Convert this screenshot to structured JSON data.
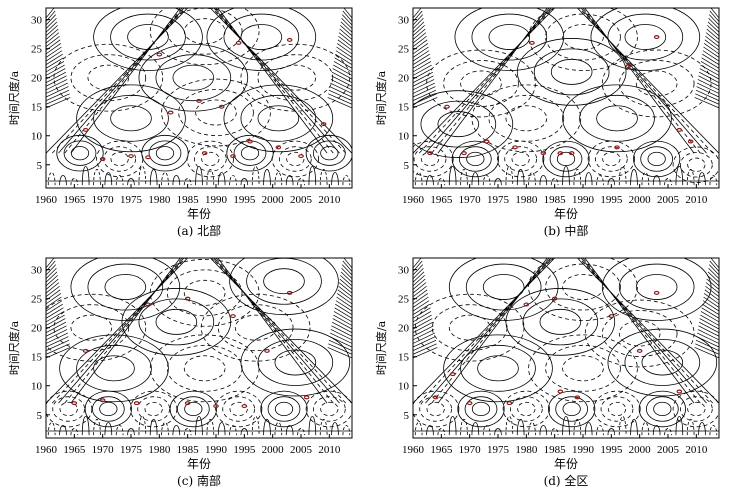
{
  "chart_data": [
    {
      "type": "contour",
      "panel": "a",
      "caption": "(a) 北部",
      "xlabel": "年份",
      "ylabel": "时间尺度/a",
      "xlim": [
        1960,
        2014
      ],
      "ylim": [
        1,
        32
      ],
      "xticks": [
        1960,
        1965,
        1970,
        1975,
        1980,
        1985,
        1990,
        1995,
        2000,
        2005,
        2010
      ],
      "yticks": [
        5,
        10,
        15,
        20,
        25,
        30
      ],
      "centers": [
        {
          "x": 1978,
          "y": 27,
          "s": 1
        },
        {
          "x": 1988,
          "y": 28,
          "s": -1
        },
        {
          "x": 1998,
          "y": 27,
          "s": 1
        },
        {
          "x": 1971,
          "y": 20,
          "s": -1
        },
        {
          "x": 1986,
          "y": 20,
          "s": 1
        },
        {
          "x": 2004,
          "y": 20,
          "s": -1
        },
        {
          "x": 1975,
          "y": 13,
          "s": 1
        },
        {
          "x": 1990,
          "y": 14,
          "s": -1
        },
        {
          "x": 2001,
          "y": 13,
          "s": 1
        },
        {
          "x": 1966,
          "y": 7,
          "s": 1
        },
        {
          "x": 1973,
          "y": 6,
          "s": -1
        },
        {
          "x": 1981,
          "y": 7,
          "s": 1
        },
        {
          "x": 1989,
          "y": 6,
          "s": -1
        },
        {
          "x": 1996,
          "y": 7,
          "s": 1
        },
        {
          "x": 2004,
          "y": 6,
          "s": -1
        },
        {
          "x": 2010,
          "y": 7,
          "s": 1
        }
      ],
      "marks": [
        {
          "x": 1967,
          "y": 11
        },
        {
          "x": 1970,
          "y": 6
        },
        {
          "x": 1975,
          "y": 6.5
        },
        {
          "x": 1978,
          "y": 6.3
        },
        {
          "x": 1980,
          "y": 24
        },
        {
          "x": 1982,
          "y": 14
        },
        {
          "x": 1987,
          "y": 16
        },
        {
          "x": 1988,
          "y": 7
        },
        {
          "x": 1991,
          "y": 15
        },
        {
          "x": 1993,
          "y": 6.5
        },
        {
          "x": 1994,
          "y": 26
        },
        {
          "x": 1996,
          "y": 9
        },
        {
          "x": 2001,
          "y": 8
        },
        {
          "x": 2003,
          "y": 26.5
        },
        {
          "x": 2005,
          "y": 6.5
        },
        {
          "x": 2009,
          "y": 12
        }
      ]
    },
    {
      "type": "contour",
      "panel": "b",
      "caption": "(b) 中部",
      "xlabel": "年份",
      "ylabel": "时间尺度/a",
      "xlim": [
        1960,
        2014
      ],
      "ylim": [
        1,
        32
      ],
      "xticks": [
        1960,
        1965,
        1970,
        1975,
        1980,
        1985,
        1990,
        1995,
        2000,
        2005,
        2010
      ],
      "yticks": [
        5,
        10,
        15,
        20,
        25,
        30
      ],
      "centers": [
        {
          "x": 1977,
          "y": 27,
          "s": 1
        },
        {
          "x": 1990,
          "y": 27,
          "s": -1
        },
        {
          "x": 2001,
          "y": 27,
          "s": 1
        },
        {
          "x": 1972,
          "y": 19,
          "s": -1
        },
        {
          "x": 1988,
          "y": 21,
          "s": 1
        },
        {
          "x": 2003,
          "y": 19,
          "s": -1
        },
        {
          "x": 1968,
          "y": 12,
          "s": 1
        },
        {
          "x": 1980,
          "y": 13,
          "s": -1
        },
        {
          "x": 1996,
          "y": 13,
          "s": 1
        },
        {
          "x": 1963,
          "y": 6,
          "s": -1
        },
        {
          "x": 1971,
          "y": 6,
          "s": 1
        },
        {
          "x": 1979,
          "y": 6,
          "s": -1
        },
        {
          "x": 1987,
          "y": 6,
          "s": 1
        },
        {
          "x": 1995,
          "y": 6,
          "s": -1
        },
        {
          "x": 2003,
          "y": 6,
          "s": 1
        },
        {
          "x": 2010,
          "y": 5,
          "s": -1
        }
      ],
      "marks": [
        {
          "x": 1963,
          "y": 7
        },
        {
          "x": 1966,
          "y": 15
        },
        {
          "x": 1969,
          "y": 7
        },
        {
          "x": 1973,
          "y": 9
        },
        {
          "x": 1978,
          "y": 8
        },
        {
          "x": 1981,
          "y": 26
        },
        {
          "x": 1983,
          "y": 7
        },
        {
          "x": 1986,
          "y": 7
        },
        {
          "x": 1988,
          "y": 7
        },
        {
          "x": 1996,
          "y": 8
        },
        {
          "x": 1998,
          "y": 22
        },
        {
          "x": 2003,
          "y": 27
        },
        {
          "x": 2007,
          "y": 11
        },
        {
          "x": 2009,
          "y": 9
        }
      ]
    },
    {
      "type": "contour",
      "panel": "c",
      "caption": "(c) 南部",
      "xlabel": "年份",
      "ylabel": "时间尺度/a",
      "xlim": [
        1960,
        2014
      ],
      "ylim": [
        1,
        32
      ],
      "xticks": [
        1960,
        1965,
        1970,
        1975,
        1980,
        1985,
        1990,
        1995,
        2000,
        2005,
        2010
      ],
      "yticks": [
        5,
        10,
        15,
        20,
        25,
        30
      ],
      "centers": [
        {
          "x": 1974,
          "y": 27,
          "s": 1
        },
        {
          "x": 1988,
          "y": 26,
          "s": -1
        },
        {
          "x": 2002,
          "y": 28,
          "s": 1
        },
        {
          "x": 1968,
          "y": 20,
          "s": -1
        },
        {
          "x": 1983,
          "y": 21,
          "s": 1
        },
        {
          "x": 1997,
          "y": 20,
          "s": -1
        },
        {
          "x": 1972,
          "y": 13,
          "s": 1
        },
        {
          "x": 1988,
          "y": 13,
          "s": -1
        },
        {
          "x": 2004,
          "y": 14,
          "s": 1
        },
        {
          "x": 1964,
          "y": 6,
          "s": -1
        },
        {
          "x": 1971,
          "y": 6,
          "s": 1
        },
        {
          "x": 1979,
          "y": 6,
          "s": -1
        },
        {
          "x": 1986,
          "y": 6,
          "s": 1
        },
        {
          "x": 1994,
          "y": 6,
          "s": -1
        },
        {
          "x": 2002,
          "y": 6,
          "s": 1
        },
        {
          "x": 2010,
          "y": 6,
          "s": -1
        }
      ],
      "marks": [
        {
          "x": 1965,
          "y": 7
        },
        {
          "x": 1967,
          "y": 16
        },
        {
          "x": 1970,
          "y": 7.5
        },
        {
          "x": 1976,
          "y": 7
        },
        {
          "x": 1978,
          "y": 24
        },
        {
          "x": 1985,
          "y": 25
        },
        {
          "x": 1985,
          "y": 7
        },
        {
          "x": 1990,
          "y": 6.5
        },
        {
          "x": 1993,
          "y": 22
        },
        {
          "x": 1995,
          "y": 6.5
        },
        {
          "x": 1999,
          "y": 16
        },
        {
          "x": 2003,
          "y": 26
        },
        {
          "x": 2006,
          "y": 8
        }
      ]
    },
    {
      "type": "contour",
      "panel": "d",
      "caption": "(d) 全区",
      "xlabel": "年份",
      "ylabel": "时间尺度/a",
      "xlim": [
        1960,
        2014
      ],
      "ylim": [
        1,
        32
      ],
      "xticks": [
        1960,
        1965,
        1970,
        1975,
        1980,
        1985,
        1990,
        1995,
        2000,
        2005,
        2010
      ],
      "yticks": [
        5,
        10,
        15,
        20,
        25,
        30
      ],
      "centers": [
        {
          "x": 1976,
          "y": 27,
          "s": 1
        },
        {
          "x": 1990,
          "y": 27,
          "s": -1
        },
        {
          "x": 2003,
          "y": 27,
          "s": 1
        },
        {
          "x": 1970,
          "y": 20,
          "s": -1
        },
        {
          "x": 1986,
          "y": 21,
          "s": 1
        },
        {
          "x": 2000,
          "y": 19,
          "s": -1
        },
        {
          "x": 1975,
          "y": 13,
          "s": 1
        },
        {
          "x": 1990,
          "y": 13,
          "s": -1
        },
        {
          "x": 2004,
          "y": 14,
          "s": 1
        },
        {
          "x": 1964,
          "y": 6,
          "s": -1
        },
        {
          "x": 1972,
          "y": 6,
          "s": 1
        },
        {
          "x": 1980,
          "y": 6,
          "s": -1
        },
        {
          "x": 1988,
          "y": 6,
          "s": 1
        },
        {
          "x": 1996,
          "y": 6,
          "s": -1
        },
        {
          "x": 2004,
          "y": 6,
          "s": 1
        },
        {
          "x": 2010,
          "y": 6,
          "s": -1
        }
      ],
      "marks": [
        {
          "x": 1964,
          "y": 8
        },
        {
          "x": 1967,
          "y": 12
        },
        {
          "x": 1970,
          "y": 7
        },
        {
          "x": 1977,
          "y": 7
        },
        {
          "x": 1980,
          "y": 24
        },
        {
          "x": 1985,
          "y": 25
        },
        {
          "x": 1986,
          "y": 9
        },
        {
          "x": 1989,
          "y": 8
        },
        {
          "x": 1995,
          "y": 22
        },
        {
          "x": 2000,
          "y": 16
        },
        {
          "x": 2003,
          "y": 26
        },
        {
          "x": 2007,
          "y": 9
        }
      ]
    }
  ]
}
